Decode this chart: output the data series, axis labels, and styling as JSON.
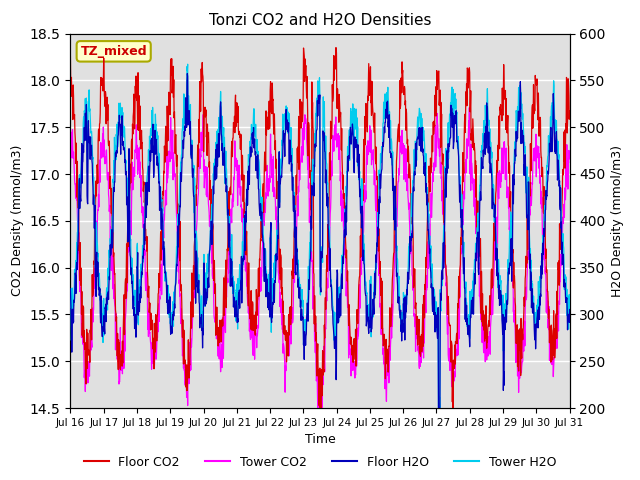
{
  "title": "Tonzi CO2 and H2O Densities",
  "xlabel": "Time",
  "ylabel_left": "CO2 Density (mmol/m3)",
  "ylabel_right": "H2O Density (mmol/m3)",
  "annotation": "TZ_mixed",
  "annotation_color": "#cc0000",
  "annotation_bg": "#ffffcc",
  "annotation_edge": "#aaaa00",
  "ylim_left": [
    14.5,
    18.5
  ],
  "ylim_right": [
    200,
    600
  ],
  "x_tick_labels": [
    "Jul 16",
    "Jul 17",
    "Jul 18",
    "Jul 19",
    "Jul 20",
    "Jul 21",
    "Jul 22",
    "Jul 23",
    "Jul 24",
    "Jul 25",
    "Jul 26",
    "Jul 27",
    "Jul 28",
    "Jul 29",
    "Jul 30",
    "Jul 31"
  ],
  "legend_entries": [
    "Floor CO2",
    "Tower CO2",
    "Floor H2O",
    "Tower H2O"
  ],
  "colors": {
    "floor_co2": "#dd0000",
    "tower_co2": "#ff00ff",
    "floor_h2o": "#0000bb",
    "tower_h2o": "#00ccee"
  },
  "plot_bg": "#e0e0e0",
  "grid_color": "#ffffff",
  "figsize": [
    6.4,
    4.8
  ],
  "dpi": 100,
  "n_per_day": 96,
  "n_days": 15
}
